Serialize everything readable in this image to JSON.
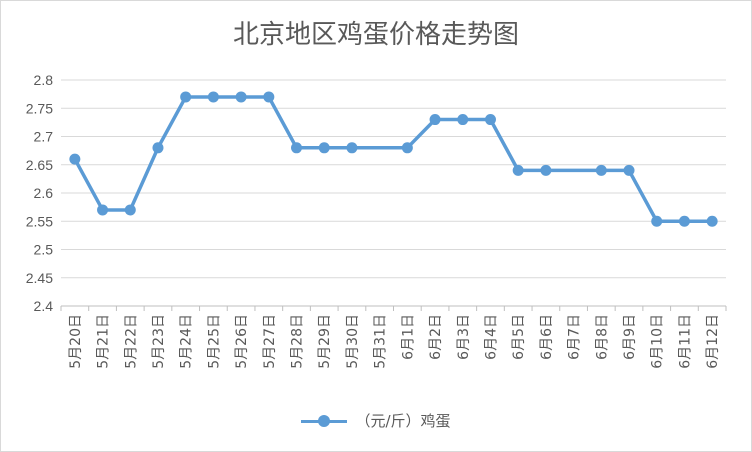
{
  "chart_data": {
    "type": "line",
    "title": "北京地区鸡蛋价格走势图",
    "categories": [
      "5月20日",
      "5月21日",
      "5月22日",
      "5月23日",
      "5月24日",
      "5月25日",
      "5月26日",
      "5月27日",
      "5月28日",
      "5月29日",
      "5月30日",
      "5月31日",
      "6月1日",
      "6月2日",
      "6月3日",
      "6月4日",
      "6月5日",
      "6月6日",
      "6月7日",
      "6月8日",
      "6月9日",
      "6月10日",
      "6月11日",
      "6月12日"
    ],
    "series": [
      {
        "name": "（元/斤）鸡蛋",
        "color": "#5b9bd5",
        "values": [
          2.66,
          2.57,
          2.57,
          2.68,
          2.77,
          2.77,
          2.77,
          2.77,
          2.68,
          2.68,
          2.68,
          2.68,
          2.68,
          2.73,
          2.73,
          2.73,
          2.64,
          2.64,
          2.64,
          2.64,
          2.64,
          2.55,
          2.55,
          2.55
        ]
      }
    ],
    "present": [
      true,
      true,
      true,
      true,
      true,
      true,
      true,
      true,
      true,
      true,
      true,
      false,
      true,
      true,
      true,
      true,
      true,
      true,
      false,
      true,
      true,
      true,
      true,
      true
    ],
    "yticks": [
      "2.4",
      "2.45",
      "2.5",
      "2.55",
      "2.6",
      "2.65",
      "2.7",
      "2.75",
      "2.8"
    ],
    "ylim": [
      2.4,
      2.8
    ],
    "grid": true,
    "legend_position": "bottom"
  }
}
